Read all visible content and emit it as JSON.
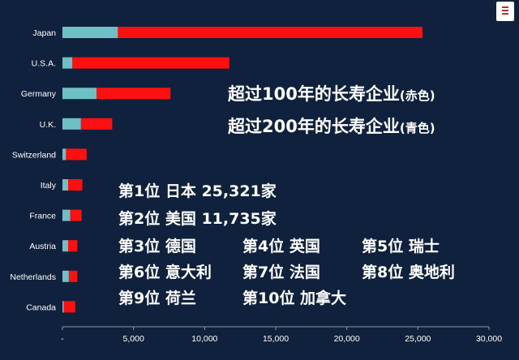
{
  "chart_data": {
    "type": "bar",
    "orientation": "horizontal",
    "stacked": true,
    "categories": [
      "Japan",
      "U.S.A.",
      "Germany",
      "U.K.",
      "Switzerland",
      "Italy",
      "France",
      "Austria",
      "Netherlands",
      "Canada"
    ],
    "series": [
      {
        "name": "",
        "color": "#6ec0c4",
        "values": [
          3900,
          700,
          2400,
          1300,
          250,
          400,
          550,
          400,
          450,
          100
        ]
      },
      {
        "name": "",
        "color": "#ff1010",
        "values": [
          21421,
          11035,
          5200,
          2200,
          1450,
          1000,
          800,
          650,
          600,
          800
        ]
      }
    ],
    "xlim": [
      0,
      30000
    ],
    "xticks": [
      "-",
      "5,000",
      "10,000",
      "15,000",
      "20,000",
      "25,000",
      "30,000"
    ],
    "xtick_values": [
      0,
      5000,
      10000,
      15000,
      20000,
      25000,
      30000
    ],
    "title": "",
    "xlabel": "",
    "ylabel": "",
    "grid": false
  },
  "legend": {
    "line1": {
      "text": "超过100年的长寿企业",
      "note": "(赤色)"
    },
    "line2": {
      "text": "超过200年的长寿企业",
      "note": "(青色)"
    }
  },
  "rankings": {
    "r1": "第1位 日本 25,321家",
    "r2": "第2位 美国 11,735家",
    "r3": "第3位 德国",
    "r4": "第4位 英国",
    "r5": "第5位 瑞士",
    "r6": "第6位 意大利",
    "r7": "第7位 法国",
    "r8": "第8位 奥地利",
    "r9": "第9位 荷兰",
    "r10": "第10位 加拿大"
  }
}
